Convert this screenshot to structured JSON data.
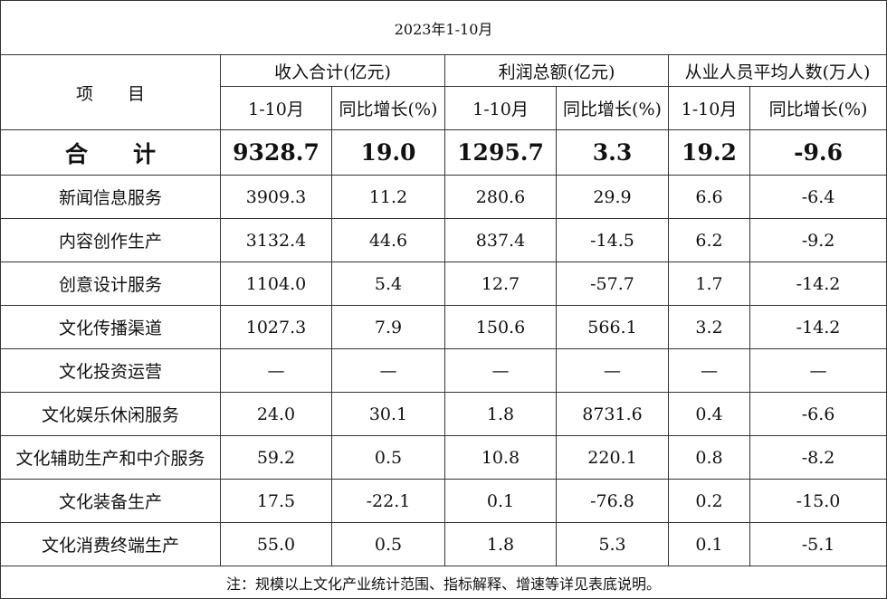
{
  "title": "2023年1-10月",
  "header": {
    "item": "项　　目",
    "groups": [
      "收入合计(亿元)",
      "利润总额(亿元)",
      "从业人员平均人数(万人)"
    ],
    "subheaders": [
      "1-10月",
      "同比增长(%)",
      "1-10月",
      "同比增长(%)",
      "1-10月",
      "同比增长(%)"
    ]
  },
  "rows": [
    {
      "label": "合　　计",
      "cells": [
        "9328.7",
        "19.0",
        "1295.7",
        "3.3",
        "19.2",
        "-9.6"
      ]
    },
    {
      "label": "新闻信息服务",
      "cells": [
        "3909.3",
        "11.2",
        "280.6",
        "29.9",
        "6.6",
        "-6.4"
      ]
    },
    {
      "label": "内容创作生产",
      "cells": [
        "3132.4",
        "44.6",
        "837.4",
        "-14.5",
        "6.2",
        "-9.2"
      ]
    },
    {
      "label": "创意设计服务",
      "cells": [
        "1104.0",
        "5.4",
        "12.7",
        "-57.7",
        "1.7",
        "-14.2"
      ]
    },
    {
      "label": "文化传播渠道",
      "cells": [
        "1027.3",
        "7.9",
        "150.6",
        "566.1",
        "3.2",
        "-14.2"
      ]
    },
    {
      "label": "文化投资运营",
      "cells": [
        "—",
        "—",
        "—",
        "—",
        "—",
        "—"
      ]
    },
    {
      "label": "文化娱乐休闲服务",
      "cells": [
        "24.0",
        "30.1",
        "1.8",
        "8731.6",
        "0.4",
        "-6.6"
      ]
    },
    {
      "label": "文化辅助生产和中介服务",
      "cells": [
        "59.2",
        "0.5",
        "10.8",
        "220.1",
        "0.8",
        "-8.2"
      ]
    },
    {
      "label": "文化装备生产",
      "cells": [
        "17.5",
        "-22.1",
        "0.1",
        "-76.8",
        "0.2",
        "-15.0"
      ]
    },
    {
      "label": "文化消费终端生产",
      "cells": [
        "55.0",
        "0.5",
        "1.8",
        "5.3",
        "0.1",
        "-5.1"
      ]
    }
  ],
  "note": "注：规模以上文化产业统计范围、指标解释、增速等详见表底说明。"
}
